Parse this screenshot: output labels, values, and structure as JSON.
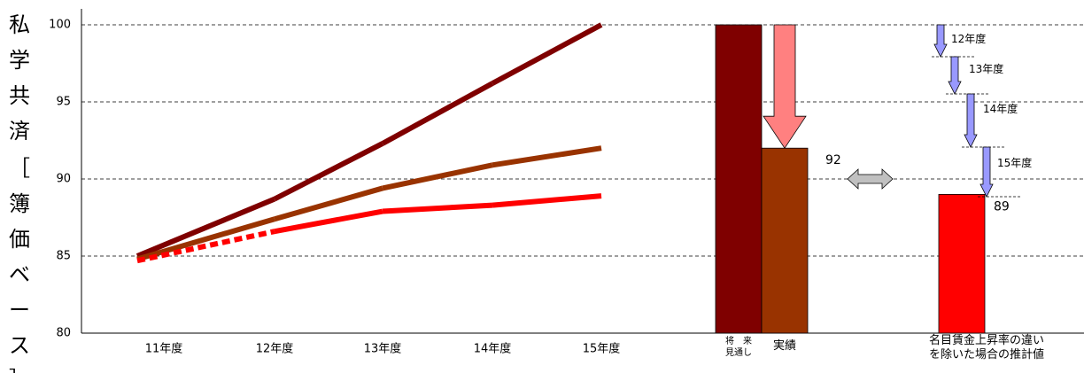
{
  "chart_data": {
    "type": "line",
    "ylabel_chars": [
      "私",
      "学",
      "共",
      "済",
      "［",
      "簿",
      "価",
      "ベ",
      "ー",
      "ス",
      "］"
    ],
    "ylim": [
      80,
      100
    ],
    "yticks": [
      "80",
      "85",
      "90",
      "95",
      "100"
    ],
    "categories": [
      "11年度",
      "12年度",
      "13年度",
      "14年度",
      "15年度"
    ],
    "series": [
      {
        "color": "#7f0000",
        "values": [
          85.0,
          88.7,
          92.3,
          96.2,
          100.0
        ]
      },
      {
        "color": "#993300",
        "values": [
          84.8,
          87.4,
          89.4,
          90.9,
          92.0
        ]
      },
      {
        "color": "#ff0000",
        "values": [
          84.7,
          86.6,
          87.9,
          88.3,
          88.9
        ],
        "dashed_segments": [
          0
        ]
      }
    ],
    "bars": [
      {
        "label": "将　来\n見通し",
        "value": 100,
        "color": "#7f0000",
        "value_label": ""
      },
      {
        "label": "実績",
        "value": 92,
        "color": "#993300",
        "value_label": "92"
      },
      {
        "label": "名目賃金上昇率の違い\nを除いた場合の推計値",
        "value": 89,
        "color": "#ff0000",
        "value_label": "89"
      }
    ],
    "step_labels": [
      "12年度",
      "13年度",
      "14年度",
      "15年度"
    ],
    "colors": {
      "drop_arrow": "#ff8080",
      "step_arrow": "#9999ff",
      "compare_arrow": "#c0c0c0"
    }
  }
}
